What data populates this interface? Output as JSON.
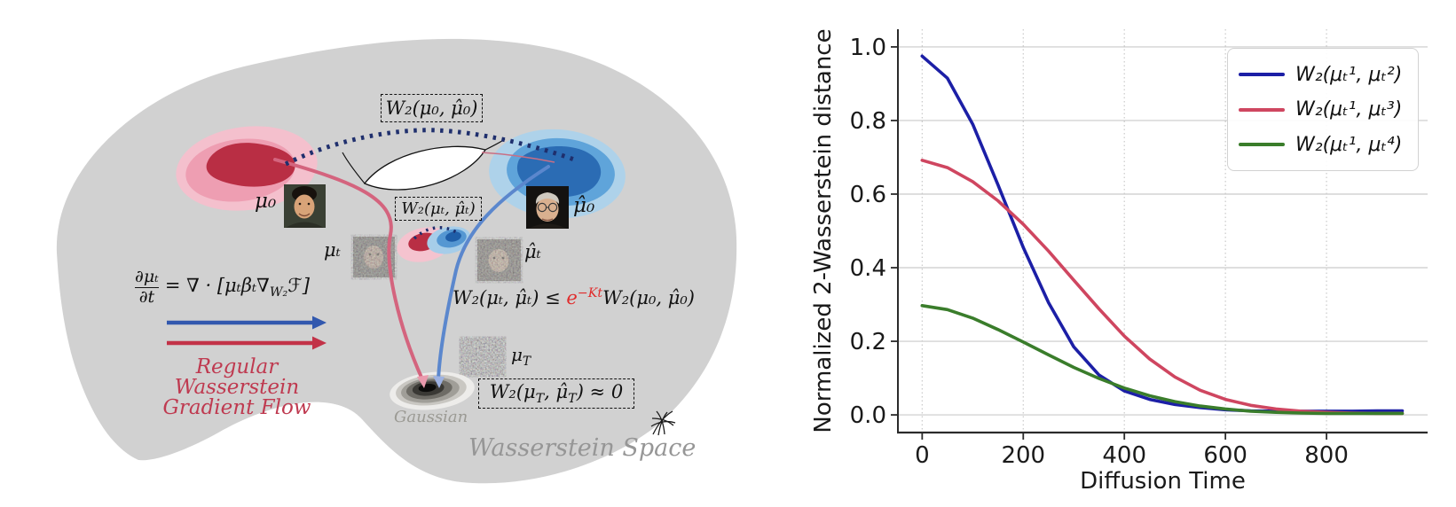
{
  "left_panel": {
    "space_label": "Wasserstein Space",
    "gaussian_label": "Gaussian",
    "flow_label_line1": "Regular Wasserstein",
    "flow_label_line2": "Gradient Flow",
    "dist_labels": {
      "mu0": "μ₀",
      "muhat0": "μ̂₀",
      "mut": "μₜ",
      "muhatt": "μ̂ₜ",
      "muT_base": "μ",
      "muT_sub": "T"
    },
    "boxes": {
      "top": "W₂(μ₀, μ̂₀)",
      "mid": "W₂(μₜ, μ̂ₜ)",
      "bottom_p1": "W₂(μ",
      "bottom_s1": "T",
      "bottom_p2": ", μ̂",
      "bottom_s2": "T",
      "bottom_p3": ") ≈ 0"
    },
    "pde": {
      "num": "∂μₜ",
      "den": "∂t",
      "rhs_pre": "= ∇ · [μₜβₜ∇",
      "rhs_sub": "W₂",
      "rhs_post": "ℱ]"
    },
    "inequality": {
      "lhs": "W₂(μₜ, μ̂ₜ) ≤ ",
      "exp_base": "e",
      "exp_sup": "−Kt",
      "rhs": "W₂(μ₀, μ̂₀)",
      "exp_color": "#e02b2b"
    },
    "colors": {
      "space": "#d1d1d1",
      "red_blob": [
        "#f4c0cd",
        "#ee9eb2",
        "#b92e44"
      ],
      "blue_blob": [
        "#aed2ea",
        "#5fa4da",
        "#2b6cb4"
      ],
      "dotted_geodesic": "#1f2f6d",
      "flow_curve_red": "#d4647e",
      "flow_curve_blue": "#5b87cd",
      "arrow_blue": "#3258ae",
      "arrow_red": "#c23247",
      "flow_text": "#bf3a50",
      "space_text": "#969696"
    }
  },
  "chart_data": {
    "type": "line",
    "title": "",
    "xlabel": "Diffusion Time",
    "ylabel": "Normalized 2-Wasserstein distance",
    "xlim": [
      -48,
      1000
    ],
    "ylim": [
      -0.048,
      1.048
    ],
    "xticks": [
      0,
      200,
      400,
      600,
      800
    ],
    "xtick_labels": [
      "0",
      "200",
      "400",
      "600",
      "800"
    ],
    "yticks": [
      1.0,
      0.8,
      0.6,
      0.4,
      0.2,
      0.0
    ],
    "ytick_labels": [
      "1.0",
      "0.8",
      "0.6",
      "0.4",
      "0.2",
      "0.0"
    ],
    "grid": {
      "horizontal": "solid",
      "vertical": "dotted",
      "color": "#c9c9c9"
    },
    "legend_position": "upper right",
    "x": [
      0,
      50,
      100,
      150,
      200,
      250,
      300,
      350,
      400,
      450,
      500,
      550,
      600,
      650,
      700,
      750,
      800,
      850,
      900,
      950
    ],
    "series": [
      {
        "name": "W₂(μₜ¹, μₜ²)",
        "color": "#1c1fa6",
        "values": [
          0.975,
          0.915,
          0.79,
          0.625,
          0.455,
          0.305,
          0.185,
          0.108,
          0.065,
          0.042,
          0.028,
          0.02,
          0.014,
          0.011,
          0.01,
          0.01,
          0.01,
          0.01,
          0.011,
          0.011
        ]
      },
      {
        "name": "W₂(μₜ¹, μₜ³)",
        "color": "#cf4660",
        "values": [
          0.692,
          0.672,
          0.634,
          0.582,
          0.518,
          0.445,
          0.366,
          0.288,
          0.214,
          0.152,
          0.103,
          0.067,
          0.042,
          0.026,
          0.016,
          0.01,
          0.007,
          0.005,
          0.004,
          0.004
        ]
      },
      {
        "name": "W₂(μₜ¹, μₜ⁴)",
        "color": "#3a7d2b",
        "values": [
          0.297,
          0.286,
          0.263,
          0.232,
          0.198,
          0.163,
          0.129,
          0.099,
          0.073,
          0.052,
          0.036,
          0.024,
          0.016,
          0.01,
          0.007,
          0.005,
          0.004,
          0.004,
          0.004,
          0.004
        ]
      }
    ]
  }
}
